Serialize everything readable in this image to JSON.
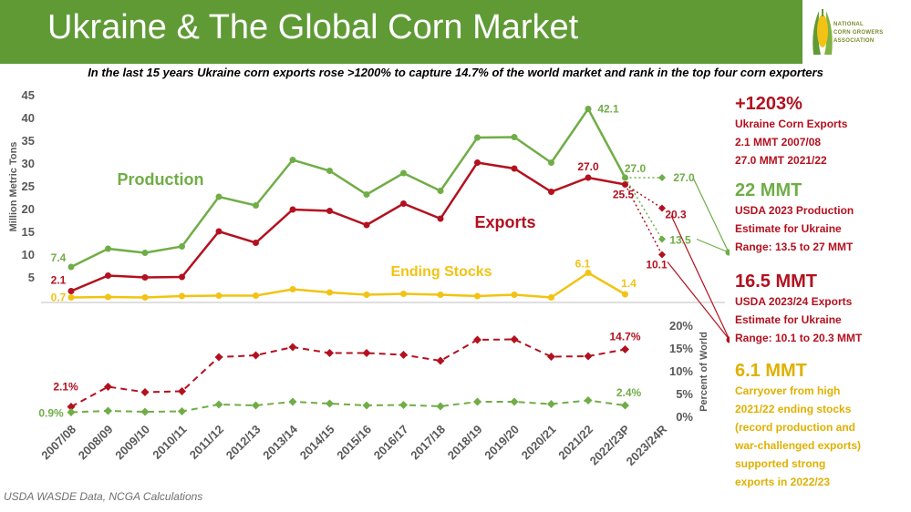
{
  "header": {
    "title": "Ukraine & The Global Corn Market"
  },
  "logo": {
    "line1": "NATIONAL",
    "line2": "CORN GROWERS",
    "line3": "ASSOCIATION"
  },
  "subtitle": "In the last 15 years Ukraine corn exports rose >1200% to capture 14.7% of the world market and rank in the top four corn exporters",
  "side_panel": {
    "b1_big": "+1203%",
    "b1_text": "Ukraine Corn Exports\n2.1 MMT 2007/08\n27.0 MMT 2021/22",
    "b2_big": "22 MMT",
    "b2_text": "USDA 2023 Production\nEstimate for Ukraine\nRange: 13.5 to 27 MMT",
    "b3_big": "16.5 MMT",
    "b3_text": "USDA 2023/24 Exports\nEstimate for Ukraine\nRange: 10.1 to 20.3 MMT",
    "b4_big": "6.1 MMT",
    "b4_text": "Carryover from high\n2021/22 ending stocks\n(record production and\nwar-challenged exports)\nsupported strong\nexports in 2022/23"
  },
  "source": "USDA WASDE Data, NCGA Calculations",
  "colors": {
    "header": "#5f9a35",
    "production": "#70ad47",
    "exports": "#b3111f",
    "stocks": "#f2c314",
    "axis_text": "#595959"
  },
  "chart_data": [
    {
      "type": "line",
      "ylabel": "Million Metric Tons",
      "ylim": [
        0,
        45
      ],
      "yticks": [
        "45",
        "40",
        "35",
        "30",
        "25",
        "20",
        "15",
        "10",
        "5"
      ],
      "categories": [
        "2007/08",
        "2008/09",
        "2009/10",
        "2010/11",
        "2011/12",
        "2012/13",
        "2013/14",
        "2014/15",
        "2015/16",
        "2016/17",
        "2017/18",
        "2018/19",
        "2019/20",
        "2020/21",
        "2021/22",
        "2022/23P",
        "2023/24R"
      ],
      "series": [
        {
          "name": "Production",
          "values": [
            7.4,
            11.4,
            10.5,
            11.9,
            22.8,
            20.9,
            30.9,
            28.5,
            23.3,
            28.0,
            24.1,
            35.8,
            35.9,
            30.3,
            42.1,
            27.0,
            null
          ],
          "projection": [
            27.0,
            13.5
          ]
        },
        {
          "name": "Exports",
          "values": [
            2.1,
            5.5,
            5.1,
            5.2,
            15.2,
            12.7,
            20.0,
            19.7,
            16.6,
            21.3,
            18.0,
            30.3,
            29.0,
            23.9,
            27.0,
            25.5,
            null
          ],
          "projection": [
            20.3,
            10.1
          ]
        },
        {
          "name": "Ending Stocks",
          "values": [
            0.7,
            0.8,
            0.7,
            1.0,
            1.1,
            1.1,
            2.5,
            1.8,
            1.3,
            1.5,
            1.3,
            1.0,
            1.3,
            0.7,
            6.1,
            1.4,
            null
          ]
        }
      ],
      "data_labels": {
        "prod_first": "7.4",
        "prod_peak": "42.1",
        "prod_last": "27.0",
        "prod_proj_hi": "27.0",
        "prod_proj_lo": "13.5",
        "exp_first": "2.1",
        "exp_2122": "27.0",
        "exp_last": "25.5",
        "exp_proj_hi": "20.3",
        "exp_proj_lo": "10.1",
        "stk_first": "0.7",
        "stk_2122": "6.1",
        "stk_last": "1.4"
      }
    },
    {
      "type": "line",
      "ylabel": "Percent of World",
      "ylim": [
        0,
        20
      ],
      "yticks": [
        "20%",
        "15%",
        "10%",
        "5%",
        "0%"
      ],
      "series": [
        {
          "name": "Exports share",
          "values": [
            2.1,
            6.5,
            5.3,
            5.5,
            13.0,
            13.4,
            15.2,
            13.9,
            13.9,
            13.5,
            12.2,
            16.8,
            16.9,
            13.1,
            13.2,
            14.7,
            null
          ]
        },
        {
          "name": "Production share",
          "values": [
            0.9,
            1.2,
            1.0,
            1.1,
            2.6,
            2.4,
            3.2,
            2.8,
            2.4,
            2.5,
            2.2,
            3.2,
            3.2,
            2.7,
            3.5,
            2.4,
            null
          ]
        }
      ],
      "data_labels": {
        "exp_first": "2.1%",
        "exp_last": "14.7%",
        "prod_first": "0.9%",
        "prod_last": "2.4%"
      }
    }
  ],
  "chart_labels": {
    "production": "Production",
    "exports": "Exports",
    "stocks": "Ending Stocks"
  }
}
